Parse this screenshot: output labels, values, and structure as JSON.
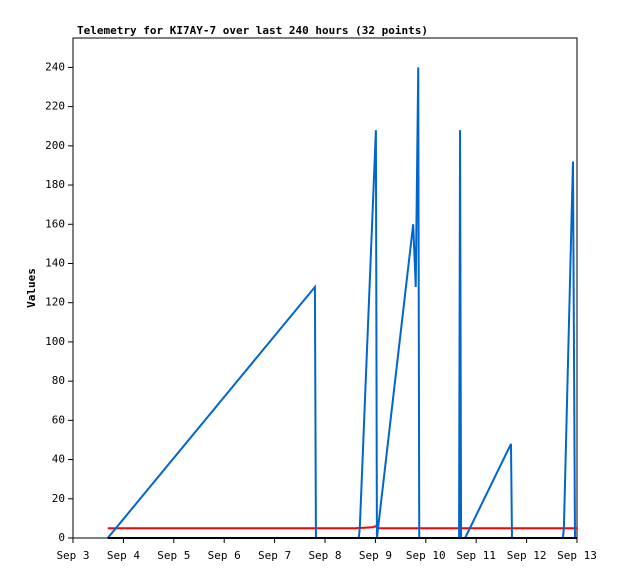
{
  "chart_data": {
    "type": "line",
    "title": "Telemetry for KI7AY-7 over last 240 hours (32 points)",
    "y_label": "Values",
    "xlim": [
      3,
      13
    ],
    "xticks": [
      {
        "value": 3,
        "label": "Sep 3"
      },
      {
        "value": 4,
        "label": "Sep 4"
      },
      {
        "value": 5,
        "label": "Sep 5"
      },
      {
        "value": 6,
        "label": "Sep 6"
      },
      {
        "value": 7,
        "label": "Sep 7"
      },
      {
        "value": 8,
        "label": "Sep 8"
      },
      {
        "value": 9,
        "label": "Sep 9"
      },
      {
        "value": 10,
        "label": "Sep 10"
      },
      {
        "value": 11,
        "label": "Sep 11"
      },
      {
        "value": 12,
        "label": "Sep 12"
      },
      {
        "value": 13,
        "label": "Sep 13"
      }
    ],
    "ylim": [
      0,
      255
    ],
    "yticks": [
      0,
      20,
      40,
      60,
      80,
      100,
      120,
      140,
      160,
      180,
      200,
      220,
      240
    ],
    "grid": false,
    "series": [
      {
        "color": "#ff0000",
        "x": [
          3.69,
          8.6,
          8.95,
          9.0,
          9.05,
          13.0
        ],
        "values": [
          5,
          5,
          5.5,
          6,
          5,
          5
        ]
      },
      {
        "color": "#0066cc",
        "x": [
          3.69,
          7.8,
          7.82,
          8.67,
          8.69,
          9.01,
          9.03,
          9.75,
          9.8,
          9.85,
          9.87,
          10.66,
          10.68,
          10.7,
          10.78,
          11.69,
          11.71,
          12.72,
          12.74,
          12.92,
          12.96,
          13.0
        ],
        "values": [
          0,
          128,
          0,
          0,
          5,
          208,
          0,
          160,
          128,
          240,
          0,
          0,
          208,
          0,
          0,
          48,
          0,
          0,
          5,
          192,
          0,
          0
        ]
      },
      {
        "color": "#000000",
        "x": [
          3.69,
          13.0
        ],
        "values": [
          0,
          0
        ]
      }
    ]
  }
}
